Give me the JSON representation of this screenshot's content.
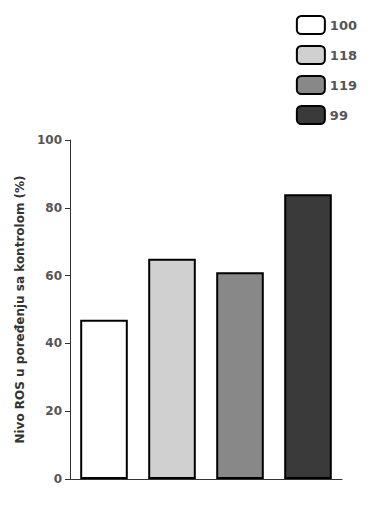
{
  "chart_data": {
    "type": "bar",
    "categories": [
      null,
      null,
      null,
      null
    ],
    "series": [
      {
        "name": "100",
        "color": "#ffffff",
        "values": [
          47,
          null,
          null,
          null
        ]
      },
      {
        "name": "118",
        "color": "#d0d0d0",
        "values": [
          null,
          65,
          null,
          null
        ]
      },
      {
        "name": "119",
        "color": "#888888",
        "values": [
          null,
          null,
          61,
          null
        ]
      },
      {
        "name": "99",
        "color": "#3a3a3a",
        "values": [
          null,
          null,
          null,
          84
        ]
      }
    ],
    "ylabel": "Nivo ROS u poređenju sa kontrolom (%)",
    "ylim": [
      0,
      100
    ],
    "yticks": [
      0,
      20,
      40,
      60,
      80,
      100
    ],
    "grid": false,
    "legend": "upper right"
  }
}
